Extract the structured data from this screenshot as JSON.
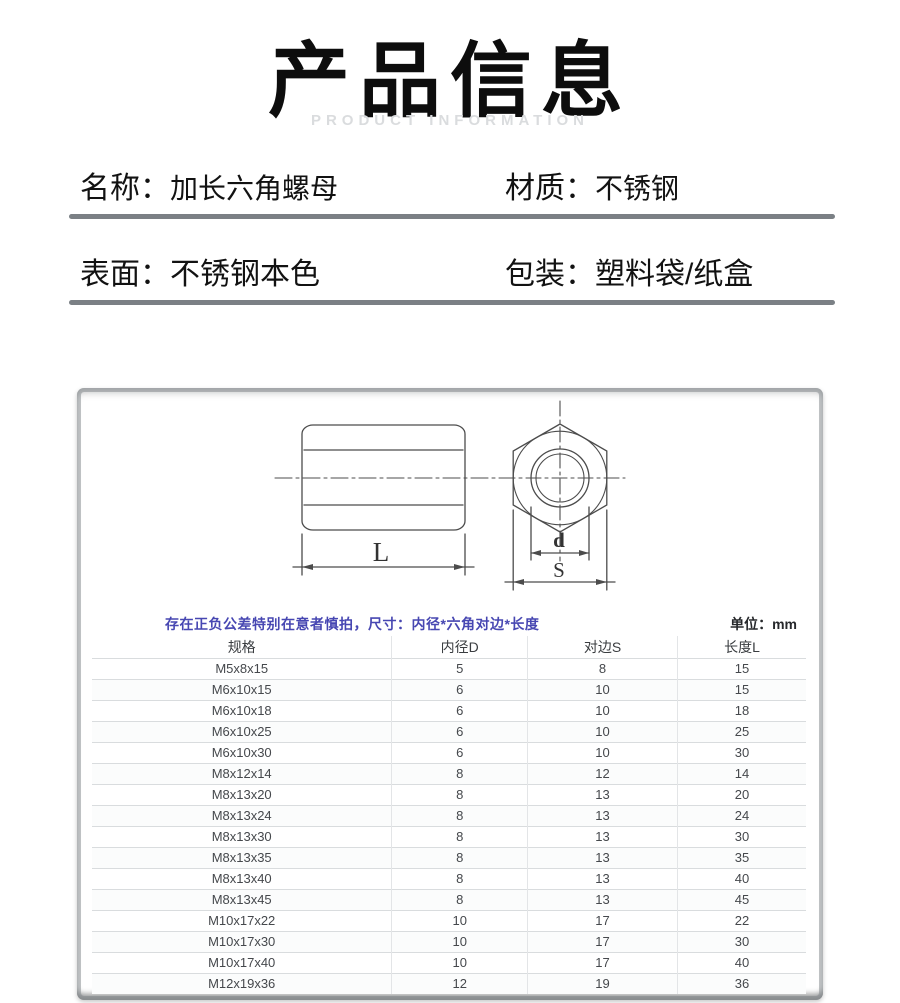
{
  "header": {
    "title": "产品信息",
    "subtitle": "PRODUCT INFORMATION"
  },
  "info": {
    "rows": [
      {
        "pairs": [
          {
            "label": "名称：",
            "value": "加长六角螺母"
          },
          {
            "label": "材质：",
            "value": "不锈钢"
          }
        ]
      },
      {
        "pairs": [
          {
            "label": "表面：",
            "value": "不锈钢本色"
          },
          {
            "label": "包装：",
            "value": "塑料袋/纸盒"
          }
        ]
      }
    ]
  },
  "drawing": {
    "length_label": "L",
    "diameter_label": "d",
    "width_label": "S"
  },
  "table": {
    "note": "存在正负公差特别在意者慎拍，尺寸：内径*六角对边*长度",
    "unit": "单位：mm",
    "headers": [
      "规格",
      "内径D",
      "对边S",
      "长度L"
    ],
    "rows": [
      [
        "M5x8x15",
        "5",
        "8",
        "15"
      ],
      [
        "M6x10x15",
        "6",
        "10",
        "15"
      ],
      [
        "M6x10x18",
        "6",
        "10",
        "18"
      ],
      [
        "M6x10x25",
        "6",
        "10",
        "25"
      ],
      [
        "M6x10x30",
        "6",
        "10",
        "30"
      ],
      [
        "M8x12x14",
        "8",
        "12",
        "14"
      ],
      [
        "M8x13x20",
        "8",
        "13",
        "20"
      ],
      [
        "M8x13x24",
        "8",
        "13",
        "24"
      ],
      [
        "M8x13x30",
        "8",
        "13",
        "30"
      ],
      [
        "M8x13x35",
        "8",
        "13",
        "35"
      ],
      [
        "M8x13x40",
        "8",
        "13",
        "40"
      ],
      [
        "M8x13x45",
        "8",
        "13",
        "45"
      ],
      [
        "M10x17x22",
        "10",
        "17",
        "22"
      ],
      [
        "M10x17x30",
        "10",
        "17",
        "30"
      ],
      [
        "M10x17x40",
        "10",
        "17",
        "40"
      ],
      [
        "M12x19x36",
        "12",
        "19",
        "36"
      ]
    ]
  },
  "colors": {
    "note_accent": "#4747b2",
    "divider": "#7b8085",
    "subtitle_gray": "#dadcde",
    "table_text": "#45484c",
    "drawing_line": "#4c4c4c"
  }
}
